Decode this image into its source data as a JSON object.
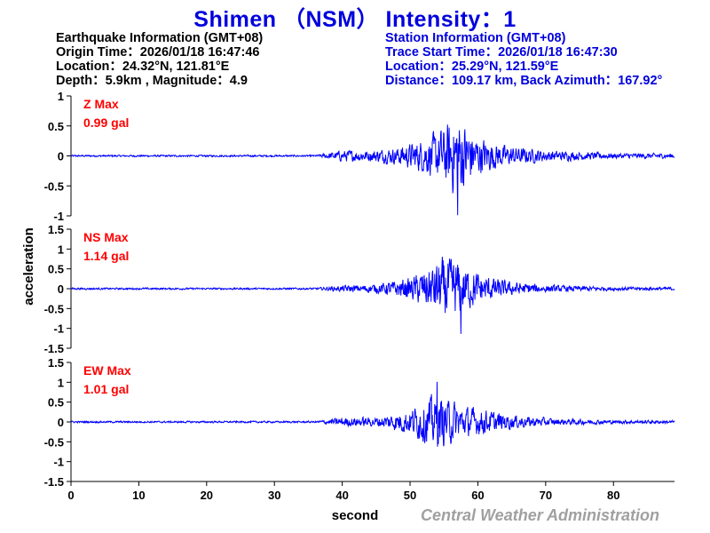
{
  "title": "Shimen （NSM） Intensity：1",
  "earthquake_info": {
    "heading": "Earthquake Information  (GMT+08)",
    "origin_time": "Origin Time：2026/01/18 16:47:46",
    "location": "Location：24.32°N, 121.81°E",
    "depth_magnitude": "Depth：5.9km , Magnitude：4.9"
  },
  "station_info": {
    "heading": "Station Information  (GMT+08)",
    "trace_start": "Trace Start Time：2026/01/18 16:47:30",
    "location": "Location：25.29°N, 121.59°E",
    "distance": "Distance：109.17 km, Back Azimuth：167.92°"
  },
  "credit": "Central Weather Administration",
  "colors": {
    "title": "#0000dd",
    "trace": "#0000ff",
    "max_label": "#ff0000",
    "credit": "#a0a0a0"
  },
  "chart_data": {
    "type": "line",
    "xlabel": "second",
    "ylabel": "acceleration",
    "xlim": [
      0,
      89
    ],
    "x_ticks": [
      0,
      10,
      20,
      30,
      40,
      50,
      60,
      70,
      80
    ],
    "grid": false,
    "series": [
      {
        "name": "Z",
        "max_label": "Z Max",
        "max_value": "0.99 gal",
        "ylim": [
          -1,
          1
        ],
        "y_ticks": [
          1,
          0.5,
          0,
          -0.5,
          -1
        ],
        "noise": 0.02,
        "peak_time": 57,
        "peak_value": -0.99,
        "envelope": [
          [
            0,
            0.02
          ],
          [
            36,
            0.02
          ],
          [
            40,
            0.12
          ],
          [
            44,
            0.12
          ],
          [
            48,
            0.18
          ],
          [
            52,
            0.35
          ],
          [
            55,
            0.6
          ],
          [
            57,
            0.9
          ],
          [
            60,
            0.4
          ],
          [
            64,
            0.22
          ],
          [
            70,
            0.12
          ],
          [
            80,
            0.06
          ],
          [
            89,
            0.05
          ]
        ]
      },
      {
        "name": "NS",
        "max_label": "NS Max",
        "max_value": "1.14 gal",
        "ylim": [
          -1.5,
          1.5
        ],
        "y_ticks": [
          1.5,
          1,
          0.5,
          0,
          -0.5,
          -1,
          -1.5
        ],
        "noise": 0.03,
        "peak_time": 57.5,
        "peak_value": -1.14,
        "envelope": [
          [
            0,
            0.03
          ],
          [
            36,
            0.03
          ],
          [
            40,
            0.1
          ],
          [
            45,
            0.15
          ],
          [
            50,
            0.35
          ],
          [
            53,
            0.7
          ],
          [
            55,
            1.0
          ],
          [
            57,
            0.9
          ],
          [
            60,
            0.5
          ],
          [
            64,
            0.25
          ],
          [
            70,
            0.12
          ],
          [
            80,
            0.06
          ],
          [
            89,
            0.05
          ]
        ]
      },
      {
        "name": "EW",
        "max_label": "EW Max",
        "max_value": "1.01 gal",
        "ylim": [
          -1.5,
          1.5
        ],
        "y_ticks": [
          1.5,
          1,
          0.5,
          0,
          -0.5,
          -1,
          -1.5
        ],
        "noise": 0.03,
        "peak_time": 54,
        "peak_value": 1.01,
        "envelope": [
          [
            0,
            0.03
          ],
          [
            36,
            0.03
          ],
          [
            40,
            0.15
          ],
          [
            45,
            0.15
          ],
          [
            50,
            0.4
          ],
          [
            53,
            0.8
          ],
          [
            55,
            0.8
          ],
          [
            58,
            0.5
          ],
          [
            62,
            0.35
          ],
          [
            66,
            0.2
          ],
          [
            72,
            0.1
          ],
          [
            80,
            0.06
          ],
          [
            89,
            0.05
          ]
        ]
      }
    ]
  }
}
